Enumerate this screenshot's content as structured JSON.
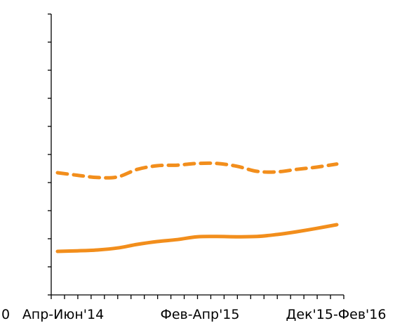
{
  "chart_data": {
    "type": "line",
    "categories": [
      "Апр-Июн'14",
      "",
      "",
      "",
      "",
      "",
      "",
      "Фев-Апр'15",
      "",
      "",
      "",
      "",
      "",
      "",
      "Дек'15-Фев'16"
    ],
    "tick_labels": [
      "Апр-Июн'14",
      "Фев-Апр'15",
      "Дек'15-Фев'16"
    ],
    "left_label_fragment": "0",
    "series": [
      {
        "style": "dashed",
        "color": "#f28e1c",
        "values": [
          0.435,
          0.426,
          0.418,
          0.42,
          0.447,
          0.46,
          0.462,
          0.468,
          0.468,
          0.458,
          0.44,
          0.438,
          0.447,
          0.455,
          0.466
        ]
      },
      {
        "style": "solid",
        "color": "#f28e1c",
        "values": [
          0.155,
          0.157,
          0.16,
          0.167,
          0.18,
          0.19,
          0.197,
          0.207,
          0.208,
          0.207,
          0.208,
          0.215,
          0.225,
          0.237,
          0.25
        ]
      }
    ],
    "ylim": [
      0,
      1
    ],
    "y_ticks": 11,
    "x_minor_ticks": 22,
    "grid": false,
    "legend": "none",
    "title": "",
    "xlabel": "",
    "ylabel": ""
  }
}
